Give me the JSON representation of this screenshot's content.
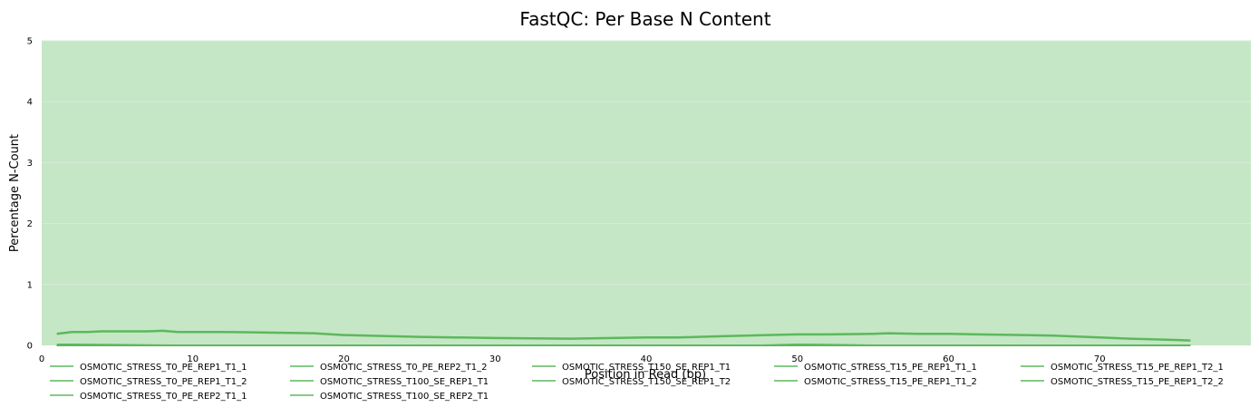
{
  "chart_data": {
    "type": "line",
    "title": "FastQC: Per Base N Content",
    "xlabel": "Position in Read (bp)",
    "ylabel": "Percentage N-Count",
    "xlim": [
      0,
      80
    ],
    "ylim": [
      0,
      5
    ],
    "xticks": [
      0,
      10,
      20,
      30,
      40,
      50,
      60,
      70
    ],
    "yticks": [
      0,
      1,
      2,
      3,
      4,
      5
    ],
    "grid": true,
    "background_color": "#c5e7c5",
    "line_color": "#5cb85c",
    "legend_placement": "bottom",
    "series": [
      {
        "name": "OSMOTIC_STRESS_T0_PE_REP1_T1_1",
        "x": [
          1,
          2,
          3,
          4,
          5,
          6,
          7,
          8,
          9,
          10,
          12,
          15,
          18,
          20,
          25,
          30,
          35,
          40,
          42,
          45,
          48,
          50,
          52,
          55,
          56,
          58,
          60,
          62,
          65,
          67,
          70,
          72,
          75,
          76
        ],
        "values": [
          0.19,
          0.22,
          0.22,
          0.23,
          0.23,
          0.23,
          0.23,
          0.24,
          0.22,
          0.22,
          0.22,
          0.21,
          0.2,
          0.17,
          0.14,
          0.12,
          0.11,
          0.13,
          0.13,
          0.15,
          0.17,
          0.18,
          0.18,
          0.19,
          0.2,
          0.19,
          0.19,
          0.18,
          0.17,
          0.16,
          0.13,
          0.11,
          0.09,
          0.08
        ]
      },
      {
        "name": "OSMOTIC_STRESS_T0_PE_REP1_T1_2",
        "x": [
          1,
          2,
          10,
          20,
          30,
          40,
          47,
          50,
          53,
          56,
          60,
          70,
          76
        ],
        "values": [
          0.02,
          0.02,
          0.0,
          0.0,
          0.0,
          0.0,
          0.0,
          0.02,
          0.01,
          0.0,
          0.0,
          0.0,
          0.0
        ]
      },
      {
        "name": "OSMOTIC_STRESS_T0_PE_REP2_T1_1",
        "x": [
          1,
          76
        ],
        "values": [
          0.0,
          0.0
        ]
      },
      {
        "name": "OSMOTIC_STRESS_T0_PE_REP2_T1_2",
        "x": [
          1,
          76
        ],
        "values": [
          0.0,
          0.0
        ]
      },
      {
        "name": "OSMOTIC_STRESS_T100_SE_REP1_T1",
        "x": [
          1,
          76
        ],
        "values": [
          0.0,
          0.0
        ]
      },
      {
        "name": "OSMOTIC_STRESS_T100_SE_REP2_T1",
        "x": [
          1,
          76
        ],
        "values": [
          0.0,
          0.0
        ]
      },
      {
        "name": "OSMOTIC_STRESS_T150_SE_REP1_T1",
        "x": [
          1,
          76
        ],
        "values": [
          0.0,
          0.0
        ]
      },
      {
        "name": "OSMOTIC_STRESS_T150_SE_REP1_T2",
        "x": [
          1,
          76
        ],
        "values": [
          0.0,
          0.0
        ]
      },
      {
        "name": "OSMOTIC_STRESS_T15_PE_REP1_T1_1",
        "x": [
          1,
          76
        ],
        "values": [
          0.0,
          0.0
        ]
      },
      {
        "name": "OSMOTIC_STRESS_T15_PE_REP1_T1_2",
        "x": [
          1,
          76
        ],
        "values": [
          0.0,
          0.0
        ]
      },
      {
        "name": "OSMOTIC_STRESS_T15_PE_REP1_T2_1",
        "x": [
          1,
          76
        ],
        "values": [
          0.0,
          0.0
        ]
      },
      {
        "name": "OSMOTIC_STRESS_T15_PE_REP1_T2_2",
        "x": [
          1,
          76
        ],
        "values": [
          0.0,
          0.0
        ]
      }
    ]
  }
}
